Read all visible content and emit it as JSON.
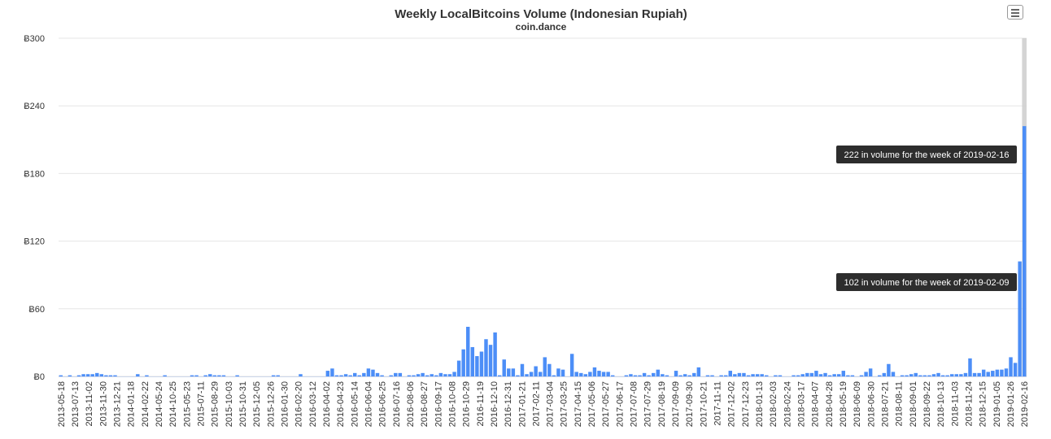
{
  "chart_data": {
    "type": "bar",
    "title": "Weekly LocalBitcoins Volume (Indonesian Rupiah)",
    "subtitle": "coin.dance",
    "xlabel": "",
    "ylabel": "",
    "ylim": [
      0,
      300
    ],
    "yticks": [
      "Ƀ0",
      "Ƀ60",
      "Ƀ120",
      "Ƀ180",
      "Ƀ240",
      "Ƀ300"
    ],
    "ytick_values": [
      0,
      60,
      120,
      180,
      240,
      300
    ],
    "grid": true,
    "legend": "none",
    "bar_color": "#4c8ef7",
    "x_labels": [
      "2013-05-18",
      "2013-07-13",
      "2013-11-02",
      "2013-11-30",
      "2013-12-21",
      "2014-01-18",
      "2014-02-22",
      "2014-05-24",
      "2014-10-25",
      "2015-05-23",
      "2015-07-11",
      "2015-08-29",
      "2015-10-03",
      "2015-10-31",
      "2015-12-05",
      "2015-12-26",
      "2016-01-30",
      "2016-02-20",
      "2016-03-12",
      "2016-04-02",
      "2016-04-23",
      "2016-05-14",
      "2016-06-04",
      "2016-06-25",
      "2016-07-16",
      "2016-08-06",
      "2016-08-27",
      "2016-09-17",
      "2016-10-08",
      "2016-10-29",
      "2016-11-19",
      "2016-12-10",
      "2016-12-31",
      "2017-01-21",
      "2017-02-11",
      "2017-03-04",
      "2017-03-25",
      "2017-04-15",
      "2017-05-06",
      "2017-05-27",
      "2017-06-17",
      "2017-07-08",
      "2017-07-29",
      "2017-08-19",
      "2017-09-09",
      "2017-09-30",
      "2017-10-21",
      "2017-11-11",
      "2017-12-02",
      "2017-12-23",
      "2018-01-13",
      "2018-02-03",
      "2018-02-24",
      "2018-03-17",
      "2018-04-07",
      "2018-04-28",
      "2018-05-19",
      "2018-06-09",
      "2018-06-30",
      "2018-07-21",
      "2018-08-11",
      "2018-09-01",
      "2018-09-22",
      "2018-10-13",
      "2018-11-03",
      "2018-11-24",
      "2018-12-15",
      "2019-01-05",
      "2019-01-26",
      "2019-02-16"
    ],
    "values": [
      1,
      0,
      1,
      0,
      1,
      2,
      2,
      2,
      3,
      2,
      1,
      1,
      1,
      0,
      0,
      0,
      0,
      2,
      0,
      1,
      0,
      0,
      0,
      1,
      0,
      0,
      0,
      0,
      0,
      1,
      1,
      0,
      1,
      2,
      1,
      1,
      1,
      0,
      0,
      1,
      0,
      0,
      0,
      0,
      0,
      0,
      0,
      1,
      1,
      0,
      0,
      0,
      0,
      2,
      0,
      0,
      0,
      0,
      0,
      5,
      7,
      1,
      1,
      2,
      1,
      3,
      1,
      3,
      7,
      6,
      3,
      1,
      0,
      1,
      3,
      3,
      0,
      1,
      1,
      2,
      3,
      1,
      2,
      1,
      3,
      2,
      2,
      4,
      14,
      24,
      44,
      26,
      18,
      22,
      33,
      28,
      39,
      1,
      15,
      7,
      7,
      1,
      11,
      2,
      4,
      9,
      4,
      17,
      11,
      1,
      7,
      6,
      0,
      20,
      4,
      3,
      2,
      4,
      8,
      5,
      4,
      4,
      1,
      0,
      0,
      1,
      2,
      1,
      1,
      3,
      1,
      3,
      6,
      2,
      1,
      0,
      5,
      1,
      2,
      1,
      3,
      8,
      0,
      1,
      1,
      0,
      1,
      1,
      5,
      2,
      3,
      3,
      1,
      2,
      2,
      2,
      1,
      0,
      1,
      1,
      0,
      0,
      1,
      1,
      2,
      3,
      3,
      5,
      2,
      3,
      1,
      2,
      2,
      5,
      1,
      1,
      0,
      1,
      4,
      7,
      0,
      1,
      3,
      11,
      4,
      0,
      1,
      1,
      2,
      3,
      1,
      1,
      1,
      2,
      3,
      1,
      1,
      2,
      2,
      2,
      3,
      16,
      3,
      3,
      6,
      4,
      5,
      6,
      6,
      7,
      17,
      12,
      102,
      222
    ],
    "tooltips": [
      {
        "index": 300,
        "text": "222 in volume for the week of 2019-02-16"
      },
      {
        "index": 299,
        "text": "102 in volume for the week of 2019-02-09"
      }
    ]
  },
  "menu": {
    "icon": "hamburger-menu-icon"
  }
}
